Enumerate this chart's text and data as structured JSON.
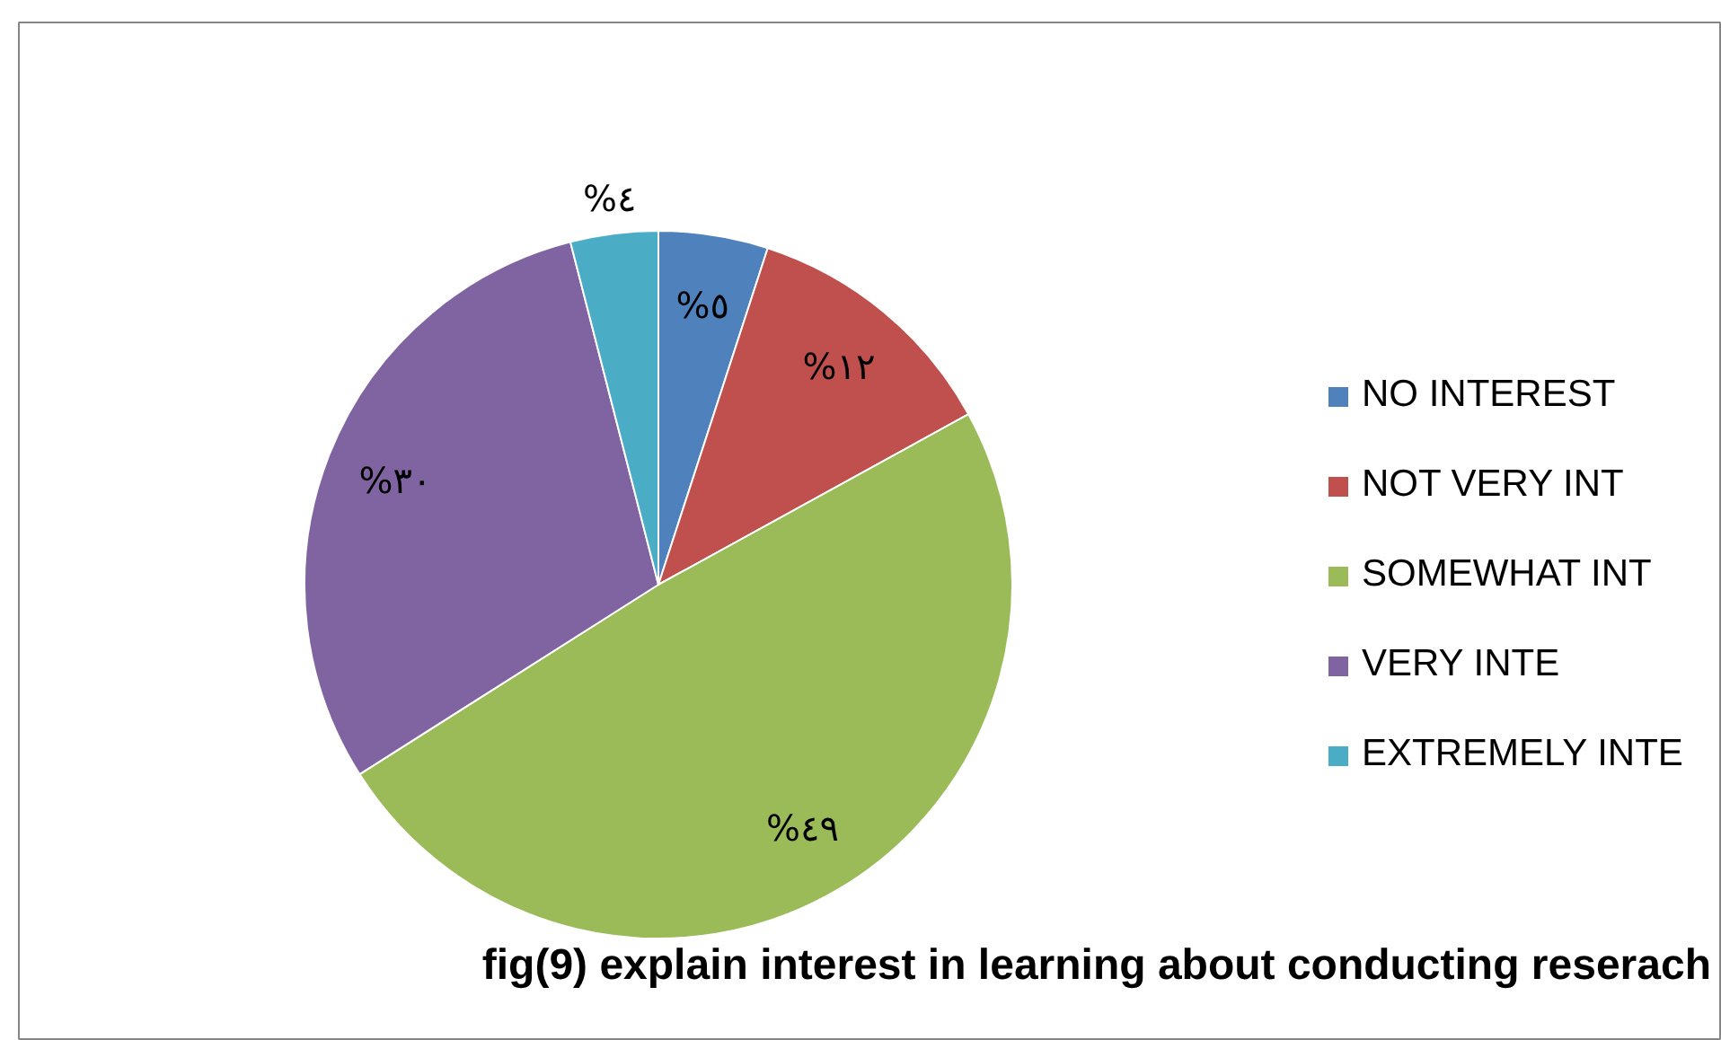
{
  "chart_data": {
    "type": "pie",
    "title": "fig(9) explain interest in learning about conducting reserach",
    "categories": [
      "NO INTEREST",
      "NOT VERY INT",
      "SOMEWHAT INT",
      "VERY INTE",
      "EXTREMELY INTE"
    ],
    "values": [
      5,
      12,
      49,
      30,
      4
    ],
    "colors": [
      "#4f81bd",
      "#c0504d",
      "#9bbb59",
      "#8064a2",
      "#4bacc6"
    ],
    "value_labels": [
      "%٥",
      "%١٢",
      "%٤٩",
      "%٣٠",
      "%٤"
    ],
    "legend": "right"
  }
}
